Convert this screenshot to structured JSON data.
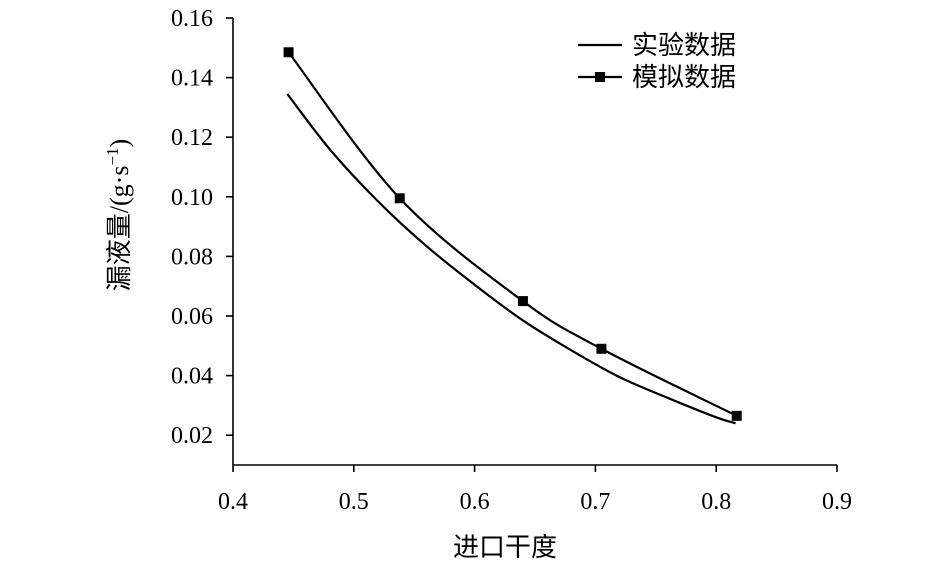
{
  "chart_data": {
    "type": "line",
    "title": "",
    "xlabel": "进口干度",
    "ylabel_main": "漏液量/(g·s",
    "ylabel_sup": "−1",
    "ylabel_close": ")",
    "xlim": [
      0.4,
      0.9
    ],
    "ylim": [
      0.01,
      0.16
    ],
    "x_ticks": [
      0.4,
      0.5,
      0.6,
      0.7,
      0.8,
      0.9
    ],
    "x_tick_labels": [
      "0.4",
      "0.5",
      "0.6",
      "0.7",
      "0.8",
      "0.9"
    ],
    "y_ticks": [
      0.02,
      0.04,
      0.06,
      0.08,
      0.1,
      0.12,
      0.14,
      0.16
    ],
    "y_tick_labels": [
      "0.02",
      "0.04",
      "0.06",
      "0.08",
      "0.10",
      "0.12",
      "0.14",
      "0.16"
    ],
    "grid": false,
    "legend_position": "top-right",
    "colors": {
      "line": "#000000",
      "marker": "#000000"
    },
    "series": [
      {
        "name": "实验数据",
        "marker": "none",
        "x": [
          0.445,
          0.48,
          0.52,
          0.56,
          0.6,
          0.64,
          0.68,
          0.72,
          0.76,
          0.8,
          0.816
        ],
        "y": [
          0.1345,
          0.116,
          0.0985,
          0.0835,
          0.0705,
          0.0585,
          0.0485,
          0.0395,
          0.0325,
          0.026,
          0.024
        ]
      },
      {
        "name": "模拟数据",
        "marker": "square",
        "x": [
          0.446,
          0.538,
          0.64,
          0.705,
          0.817
        ],
        "y": [
          0.1485,
          0.0995,
          0.065,
          0.049,
          0.0265
        ]
      }
    ]
  }
}
